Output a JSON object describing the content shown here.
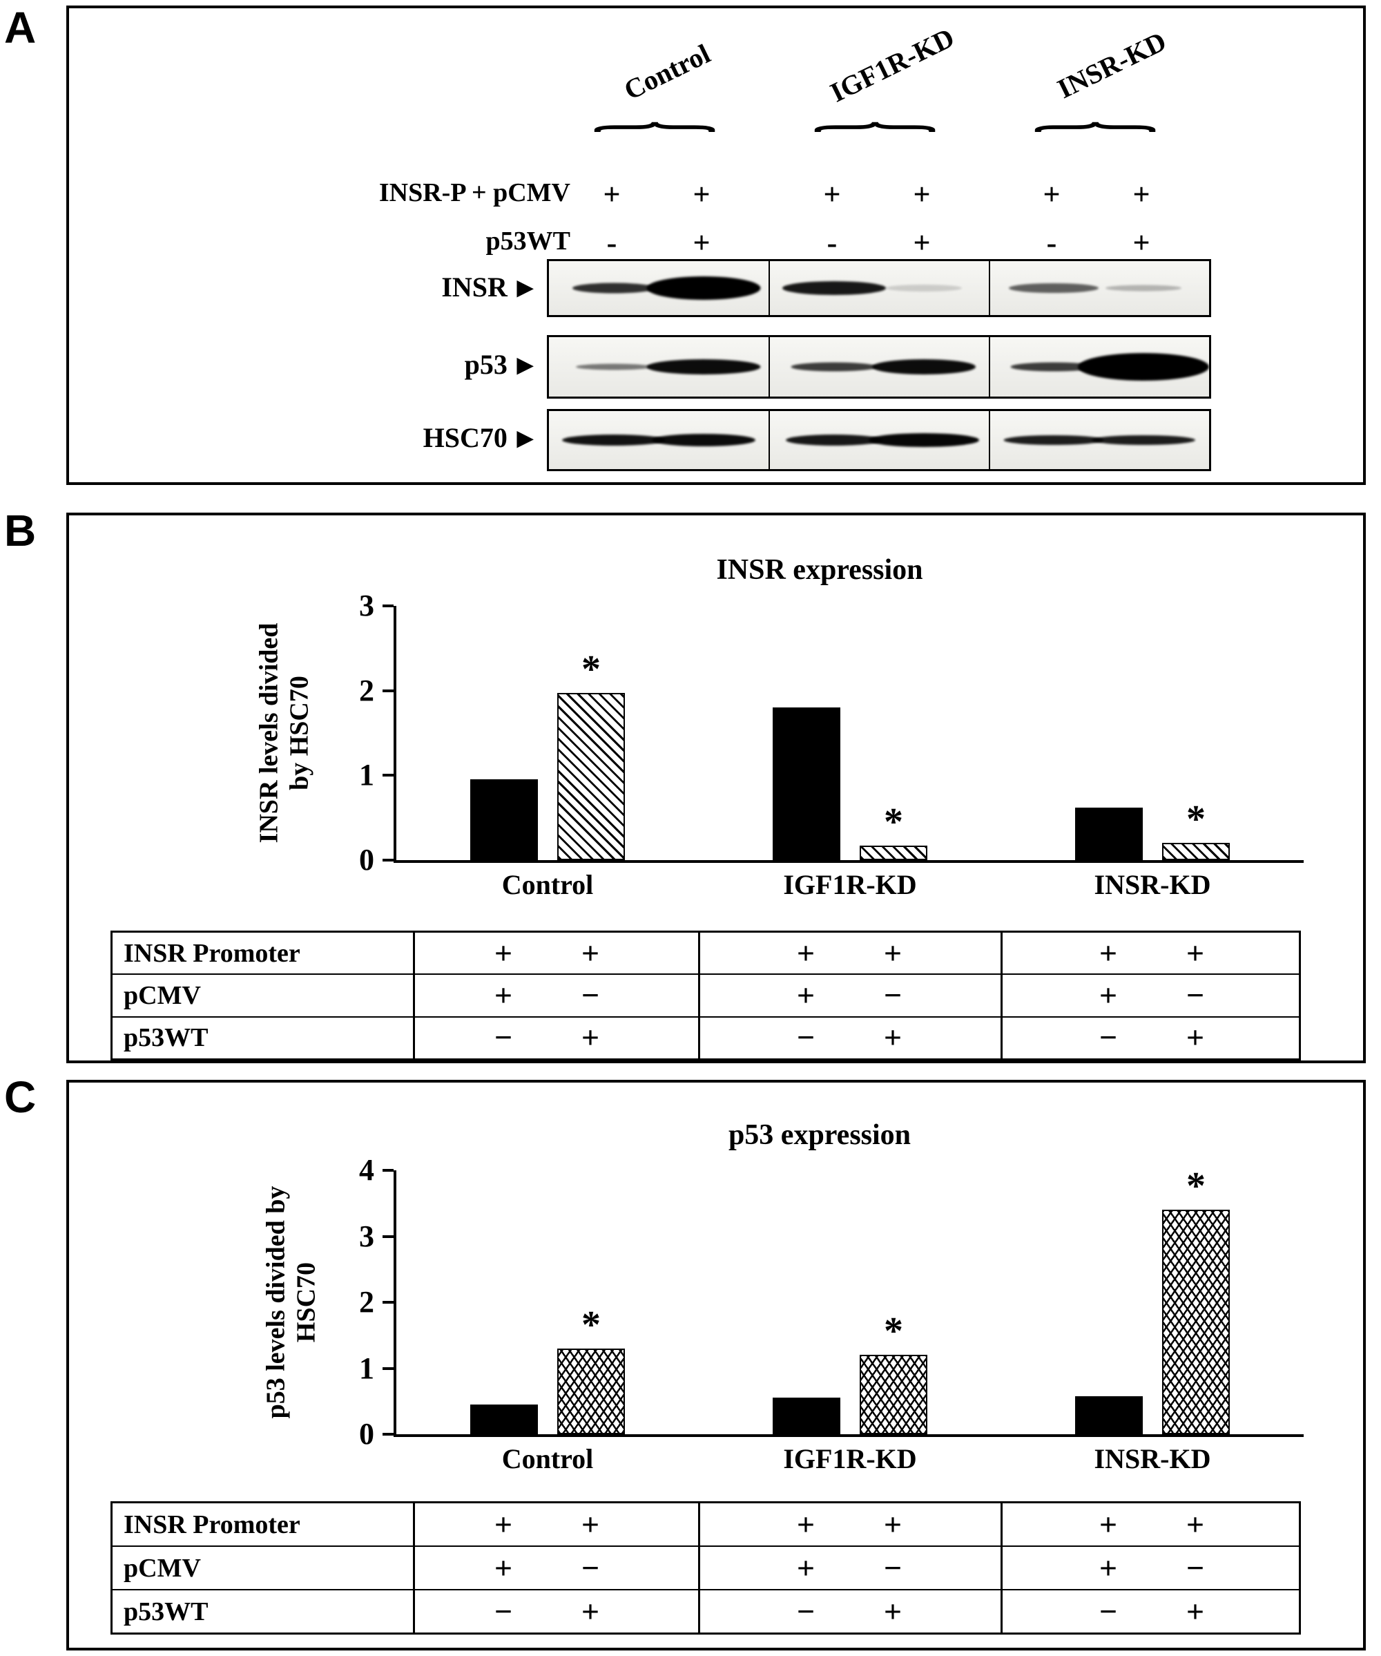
{
  "panels": {
    "a": "A",
    "b": "B",
    "c": "C"
  },
  "panelA": {
    "groups": [
      "Control",
      "IGF1R-KD",
      "INSR-KD"
    ],
    "brace_glyph": "{",
    "arrow": "▶",
    "rows": [
      {
        "label": "INSR-P + pCMV",
        "signs": [
          "+",
          "+",
          "+",
          "+",
          "+",
          "+"
        ]
      },
      {
        "label": "p53WT",
        "signs": [
          "-",
          "+",
          "-",
          "+",
          "-",
          "+"
        ]
      }
    ],
    "blots": [
      {
        "label": "INSR",
        "bands": [
          {
            "w": 120,
            "h": 15,
            "o": 0.8
          },
          {
            "w": 165,
            "h": 34,
            "o": 1
          },
          {
            "w": 150,
            "h": 20,
            "o": 0.9
          },
          {
            "w": 110,
            "h": 10,
            "o": 0.15
          },
          {
            "w": 130,
            "h": 14,
            "o": 0.6
          },
          {
            "w": 110,
            "h": 9,
            "o": 0.25
          }
        ]
      },
      {
        "label": "p53",
        "bands": [
          {
            "w": 110,
            "h": 9,
            "o": 0.5
          },
          {
            "w": 165,
            "h": 22,
            "o": 0.95
          },
          {
            "w": 125,
            "h": 13,
            "o": 0.75
          },
          {
            "w": 150,
            "h": 22,
            "o": 0.95
          },
          {
            "w": 125,
            "h": 13,
            "o": 0.75
          },
          {
            "w": 190,
            "h": 40,
            "o": 1
          }
        ]
      },
      {
        "label": "HSC70",
        "bands": [
          {
            "w": 150,
            "h": 16,
            "o": 0.92
          },
          {
            "w": 150,
            "h": 18,
            "o": 0.95
          },
          {
            "w": 140,
            "h": 16,
            "o": 0.9
          },
          {
            "w": 160,
            "h": 20,
            "o": 0.97
          },
          {
            "w": 145,
            "h": 14,
            "o": 0.88
          },
          {
            "w": 150,
            "h": 14,
            "o": 0.88
          }
        ]
      }
    ]
  },
  "chart_data": [
    {
      "type": "bar",
      "title": "INSR expression",
      "ylabel": "INSR levels divided by HSC70",
      "ylabel_lines": [
        "INSR levels divided",
        "by HSC70"
      ],
      "xlabel": "",
      "ylim": [
        0,
        3
      ],
      "yticks": [
        0,
        1,
        2,
        3
      ],
      "grid": false,
      "legend": "none",
      "categories": [
        "Control",
        "IGF1R-KD",
        "INSR-KD"
      ],
      "series": [
        {
          "name": "pCMV",
          "pattern": "solid",
          "values": [
            0.95,
            1.8,
            0.62
          ],
          "significant": [
            false,
            false,
            false
          ]
        },
        {
          "name": "p53WT",
          "pattern": "diag-hatch",
          "values": [
            1.97,
            0.17,
            0.2
          ],
          "significant": [
            true,
            true,
            true
          ]
        }
      ],
      "table": {
        "row_labels": [
          "INSR Promoter",
          "pCMV",
          "p53WT"
        ],
        "signs": [
          [
            "+",
            "+",
            "+",
            "+",
            "+",
            "+"
          ],
          [
            "+",
            "−",
            "+",
            "−",
            "+",
            "−"
          ],
          [
            "−",
            "+",
            "−",
            "+",
            "−",
            "+"
          ]
        ]
      }
    },
    {
      "type": "bar",
      "title": "p53 expression",
      "ylabel": "p53 levels divided by HSC70",
      "ylabel_lines": [
        "p53 levels divided by",
        "HSC70"
      ],
      "xlabel": "",
      "ylim": [
        0,
        4
      ],
      "yticks": [
        0,
        1,
        2,
        3,
        4
      ],
      "grid": false,
      "legend": "none",
      "categories": [
        "Control",
        "IGF1R-KD",
        "INSR-KD"
      ],
      "series": [
        {
          "name": "pCMV",
          "pattern": "solid",
          "values": [
            0.45,
            0.55,
            0.58
          ],
          "significant": [
            false,
            false,
            false
          ]
        },
        {
          "name": "p53WT",
          "pattern": "scale-hatch",
          "values": [
            1.3,
            1.2,
            3.4
          ],
          "significant": [
            true,
            true,
            true
          ]
        }
      ],
      "table": {
        "row_labels": [
          "INSR Promoter",
          "pCMV",
          "p53WT"
        ],
        "signs": [
          [
            "+",
            "+",
            "+",
            "+",
            "+",
            "+"
          ],
          [
            "+",
            "−",
            "+",
            "−",
            "+",
            "−"
          ],
          [
            "−",
            "+",
            "−",
            "+",
            "−",
            "+"
          ]
        ]
      }
    }
  ]
}
